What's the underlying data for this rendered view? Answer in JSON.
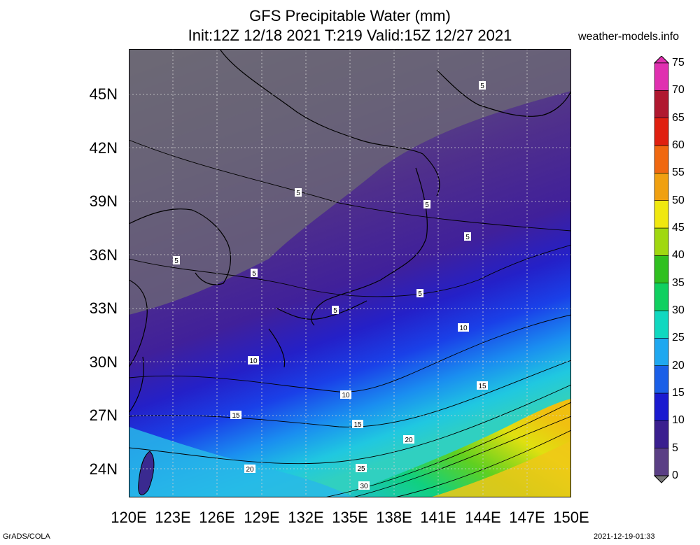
{
  "title": {
    "line1": "GFS Precipitable Water (mm)",
    "line2": "Init:12Z 12/18 2021 T:219 Valid:15Z 12/27 2021"
  },
  "site": "weather-models.info",
  "footer": {
    "left": "GrADS/COLA",
    "right": "2021-12-19-01:33"
  },
  "map": {
    "lat_labels": [
      "45N",
      "42N",
      "39N",
      "36N",
      "33N",
      "30N",
      "27N",
      "24N"
    ],
    "lon_labels": [
      "120E",
      "123E",
      "126E",
      "129E",
      "132E",
      "135E",
      "138E",
      "141E",
      "144E",
      "147E",
      "150E"
    ],
    "contour_labels": [
      "5",
      "5",
      "5",
      "5",
      "5",
      "5",
      "5",
      "5",
      "10",
      "10",
      "10",
      "15",
      "15",
      "15",
      "20",
      "20",
      "25",
      "30"
    ]
  },
  "colorbar": {
    "levels": [
      "0",
      "5",
      "10",
      "15",
      "20",
      "25",
      "30",
      "35",
      "40",
      "45",
      "50",
      "55",
      "60",
      "65",
      "70",
      "75"
    ],
    "colors": [
      "#7a7a7a",
      "#5a3f85",
      "#3a1f8f",
      "#1a1ad0",
      "#1a5fe8",
      "#1fa8f0",
      "#10d8c0",
      "#10d060",
      "#30c020",
      "#a0d810",
      "#f0e810",
      "#f0a010",
      "#f06810",
      "#e02010",
      "#b01830",
      "#e030b0"
    ]
  }
}
